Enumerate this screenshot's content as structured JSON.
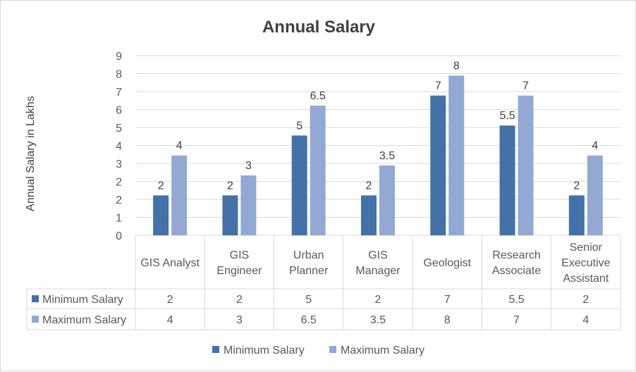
{
  "chart_data": {
    "type": "bar",
    "title": "Annual Salary",
    "ylabel": "Annual Salary in Lakhs",
    "xlabel": "",
    "ylim": [
      0,
      9
    ],
    "yticks": [
      "0",
      "1",
      "2",
      "2",
      "3",
      "4",
      "5",
      "6",
      "7",
      "8",
      "9"
    ],
    "grid": true,
    "legend_position": "bottom",
    "categories": [
      [
        "GIS Analyst"
      ],
      [
        "GIS",
        "Engineer"
      ],
      [
        "Urban",
        "Planner"
      ],
      [
        "GIS",
        "Manager"
      ],
      [
        "Geologist"
      ],
      [
        "Research",
        "Associate"
      ],
      [
        "Senior",
        "Executive",
        "Assistant"
      ]
    ],
    "series": [
      {
        "name": "Minimum Salary",
        "color": "#4472a8",
        "values": [
          2,
          2,
          5,
          2,
          7,
          5.5,
          2
        ],
        "labels": [
          "2",
          "2",
          "5",
          "2",
          "7",
          "5.5",
          "2"
        ]
      },
      {
        "name": "Maximum Salary",
        "color": "#93a9d3",
        "values": [
          4,
          3,
          6.5,
          3.5,
          8,
          7,
          4
        ],
        "labels": [
          "4",
          "3",
          "6.5",
          "3.5",
          "8",
          "7",
          "4"
        ]
      }
    ]
  }
}
